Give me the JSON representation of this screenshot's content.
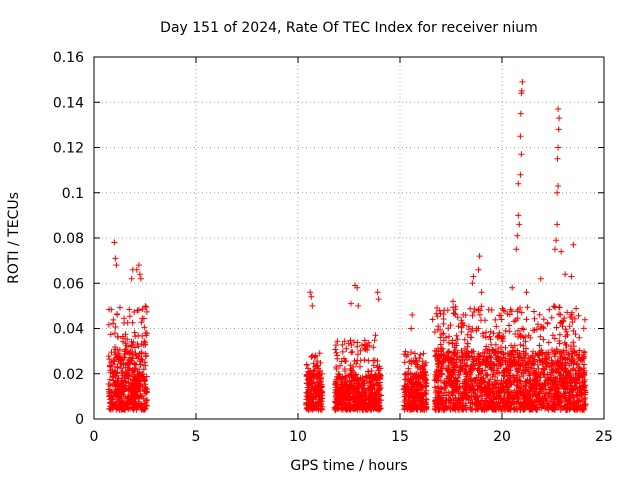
{
  "chart_data": {
    "type": "scatter",
    "title": "Day 151 of 2024, Rate Of TEC Index for receiver nium",
    "xlabel": "GPS time / hours",
    "ylabel": "ROTI / TECUs",
    "xlim": [
      0,
      25
    ],
    "ylim": [
      0,
      0.16
    ],
    "x_ticks": [
      0,
      5,
      10,
      15,
      20,
      25
    ],
    "x_tick_labels": [
      "0",
      "5",
      "10",
      "15",
      "20",
      "25"
    ],
    "y_ticks": [
      0,
      0.02,
      0.04,
      0.06,
      0.08,
      0.1,
      0.12,
      0.14,
      0.16
    ],
    "y_tick_labels": [
      "0",
      "0.02",
      "0.04",
      "0.06",
      "0.08",
      "0.1",
      "0.12",
      "0.14",
      "0.16"
    ],
    "grid": true,
    "marker": "+",
    "marker_color": "#ff0000",
    "clusters": [
      {
        "x_range": [
          0.7,
          2.6
        ],
        "y_range": [
          0.004,
          0.03
        ],
        "typical_max": 0.05
      },
      {
        "x_range": [
          10.4,
          11.2
        ],
        "y_range": [
          0.004,
          0.02
        ],
        "typical_max": 0.03
      },
      {
        "x_range": [
          11.8,
          14.1
        ],
        "y_range": [
          0.004,
          0.02
        ],
        "typical_max": 0.035
      },
      {
        "x_range": [
          15.2,
          16.3
        ],
        "y_range": [
          0.004,
          0.02
        ],
        "typical_max": 0.03
      },
      {
        "x_range": [
          16.7,
          24.1
        ],
        "y_range": [
          0.004,
          0.03
        ],
        "typical_max": 0.05
      }
    ],
    "highlighted_points": [
      {
        "x": 1.0,
        "y": 0.078
      },
      {
        "x": 1.05,
        "y": 0.071
      },
      {
        "x": 1.1,
        "y": 0.068
      },
      {
        "x": 1.9,
        "y": 0.066
      },
      {
        "x": 2.1,
        "y": 0.066
      },
      {
        "x": 2.2,
        "y": 0.068
      },
      {
        "x": 2.25,
        "y": 0.064
      },
      {
        "x": 2.3,
        "y": 0.062
      },
      {
        "x": 1.85,
        "y": 0.062
      },
      {
        "x": 10.6,
        "y": 0.056
      },
      {
        "x": 10.65,
        "y": 0.054
      },
      {
        "x": 10.7,
        "y": 0.05
      },
      {
        "x": 12.6,
        "y": 0.051
      },
      {
        "x": 12.8,
        "y": 0.059
      },
      {
        "x": 12.9,
        "y": 0.058
      },
      {
        "x": 12.95,
        "y": 0.05
      },
      {
        "x": 13.9,
        "y": 0.056
      },
      {
        "x": 13.95,
        "y": 0.053
      },
      {
        "x": 13.8,
        "y": 0.037
      },
      {
        "x": 15.6,
        "y": 0.046
      },
      {
        "x": 15.55,
        "y": 0.04
      },
      {
        "x": 16.6,
        "y": 0.044
      },
      {
        "x": 18.6,
        "y": 0.063
      },
      {
        "x": 18.55,
        "y": 0.06
      },
      {
        "x": 18.9,
        "y": 0.072
      },
      {
        "x": 18.85,
        "y": 0.066
      },
      {
        "x": 19.0,
        "y": 0.056
      },
      {
        "x": 20.7,
        "y": 0.075
      },
      {
        "x": 20.75,
        "y": 0.081
      },
      {
        "x": 20.8,
        "y": 0.09
      },
      {
        "x": 20.85,
        "y": 0.086
      },
      {
        "x": 20.8,
        "y": 0.104
      },
      {
        "x": 20.9,
        "y": 0.108
      },
      {
        "x": 20.9,
        "y": 0.125
      },
      {
        "x": 20.92,
        "y": 0.135
      },
      {
        "x": 20.95,
        "y": 0.144
      },
      {
        "x": 20.97,
        "y": 0.145
      },
      {
        "x": 21.0,
        "y": 0.149
      },
      {
        "x": 20.95,
        "y": 0.117
      },
      {
        "x": 22.6,
        "y": 0.075
      },
      {
        "x": 22.65,
        "y": 0.079
      },
      {
        "x": 22.7,
        "y": 0.086
      },
      {
        "x": 22.7,
        "y": 0.1
      },
      {
        "x": 22.75,
        "y": 0.103
      },
      {
        "x": 22.72,
        "y": 0.115
      },
      {
        "x": 22.75,
        "y": 0.12
      },
      {
        "x": 22.78,
        "y": 0.128
      },
      {
        "x": 22.8,
        "y": 0.133
      },
      {
        "x": 22.75,
        "y": 0.137
      },
      {
        "x": 23.5,
        "y": 0.077
      },
      {
        "x": 23.1,
        "y": 0.064
      },
      {
        "x": 23.4,
        "y": 0.063
      },
      {
        "x": 22.9,
        "y": 0.074
      },
      {
        "x": 21.9,
        "y": 0.062
      },
      {
        "x": 21.2,
        "y": 0.056
      },
      {
        "x": 20.5,
        "y": 0.058
      },
      {
        "x": 17.6,
        "y": 0.052
      },
      {
        "x": 18.1,
        "y": 0.046
      }
    ]
  }
}
